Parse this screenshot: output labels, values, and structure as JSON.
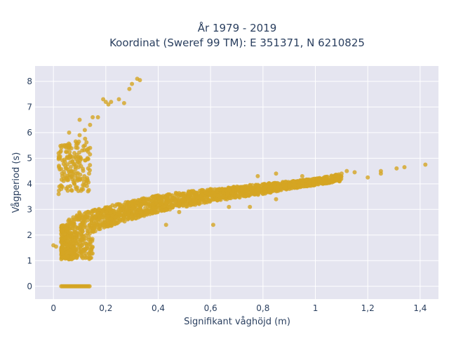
{
  "chart_data": {
    "type": "scatter",
    "title_line1": "År 1979 - 2019",
    "title_line2": "Koordinat (Sweref 99 TM): E 351371, N 6210825",
    "xlabel": "Signifikant våghöjd (m)",
    "ylabel": "Vågperiod (s)",
    "xlim": [
      -0.07,
      1.47
    ],
    "ylim": [
      -0.5,
      8.6
    ],
    "x_ticks": [
      0,
      0.2,
      0.4,
      0.6,
      0.8,
      1,
      1.2,
      1.4
    ],
    "x_tick_labels": [
      "0",
      "0,2",
      "0,4",
      "0,6",
      "0,8",
      "1",
      "1,2",
      "1,4"
    ],
    "y_ticks": [
      0,
      1,
      2,
      3,
      4,
      5,
      6,
      7,
      8
    ],
    "y_tick_labels": [
      "0",
      "1",
      "2",
      "3",
      "4",
      "5",
      "6",
      "7",
      "8"
    ],
    "grid": true,
    "colors": {
      "marker": "#d4a523",
      "plot_bg": "#e5e5f0",
      "grid": "#ffffff",
      "text": "#2a3f5f"
    },
    "clusters": {
      "zero_period": {
        "x_range": [
          0.03,
          0.14
        ],
        "y": 0
      },
      "swell": [
        [
          0.02,
          3.6
        ],
        [
          0.04,
          4.2
        ],
        [
          0.05,
          4.6
        ],
        [
          0.06,
          5.0
        ],
        [
          0.07,
          4.5
        ],
        [
          0.08,
          5.2
        ],
        [
          0.09,
          5.6
        ],
        [
          0.1,
          4.8
        ],
        [
          0.1,
          5.9
        ],
        [
          0.11,
          5.3
        ],
        [
          0.12,
          5.5
        ],
        [
          0.13,
          5.0
        ],
        [
          0.12,
          6.1
        ],
        [
          0.14,
          5.4
        ],
        [
          0.05,
          5.5
        ],
        [
          0.06,
          6.0
        ],
        [
          0.08,
          4.0
        ],
        [
          0.03,
          3.8
        ]
      ],
      "swell_tail": [
        [
          0.15,
          6.6
        ],
        [
          0.17,
          6.6
        ],
        [
          0.19,
          7.3
        ],
        [
          0.2,
          7.2
        ],
        [
          0.21,
          7.1
        ],
        [
          0.22,
          7.2
        ],
        [
          0.25,
          7.3
        ],
        [
          0.27,
          7.15
        ],
        [
          0.29,
          7.7
        ],
        [
          0.32,
          8.1
        ],
        [
          0.33,
          8.05
        ],
        [
          0.3,
          7.9
        ],
        [
          0.1,
          6.5
        ],
        [
          0.14,
          6.3
        ]
      ],
      "main_band": {
        "upper_lower_x": [
          [
            0.03,
            1.6,
            2.4
          ],
          [
            0.1,
            1.9,
            2.9
          ],
          [
            0.2,
            2.3,
            3.1
          ],
          [
            0.3,
            2.6,
            3.35
          ],
          [
            0.4,
            2.9,
            3.55
          ],
          [
            0.5,
            3.1,
            3.7
          ],
          [
            0.6,
            3.3,
            3.8
          ],
          [
            0.7,
            3.45,
            3.9
          ],
          [
            0.8,
            3.6,
            4.0
          ],
          [
            0.9,
            3.8,
            4.1
          ],
          [
            1.0,
            3.95,
            4.2
          ],
          [
            1.1,
            4.1,
            4.4
          ]
        ]
      },
      "outliers": [
        [
          1.12,
          4.5
        ],
        [
          1.15,
          4.45
        ],
        [
          1.2,
          4.25
        ],
        [
          1.25,
          4.4
        ],
        [
          1.25,
          4.5
        ],
        [
          1.31,
          4.6
        ],
        [
          1.34,
          4.65
        ],
        [
          1.42,
          4.75
        ],
        [
          0.38,
          3.2
        ],
        [
          0.43,
          2.4
        ],
        [
          0.48,
          2.9
        ],
        [
          0.61,
          2.4
        ],
        [
          0.56,
          3.5
        ],
        [
          0.67,
          3.1
        ],
        [
          0.75,
          3.1
        ],
        [
          0.85,
          3.4
        ],
        [
          0.9,
          3.95
        ],
        [
          1.02,
          4.05
        ],
        [
          0.0,
          1.6
        ],
        [
          0.01,
          1.55
        ],
        [
          0.03,
          1.4
        ],
        [
          0.78,
          4.3
        ],
        [
          0.85,
          4.4
        ],
        [
          0.95,
          4.3
        ]
      ]
    }
  }
}
